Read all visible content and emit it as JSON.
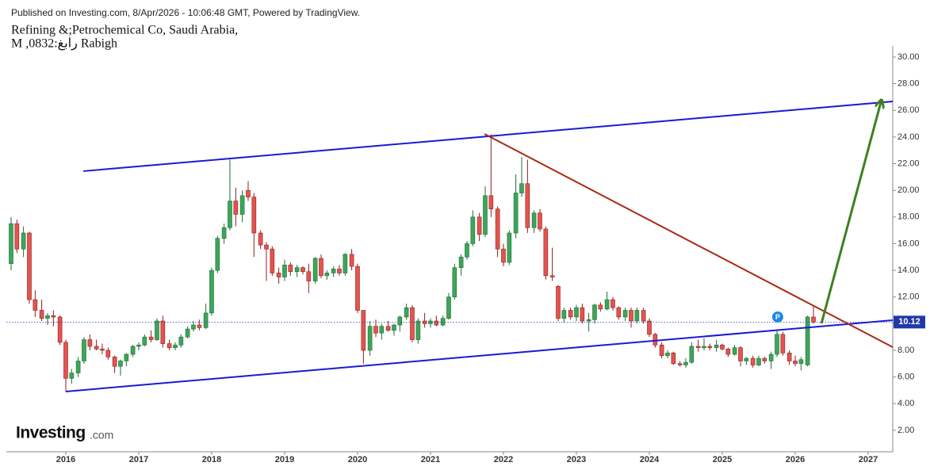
{
  "chart_data": {
    "type": "candlestick",
    "published": "Published on Investing.com, 8/Apr/2026 - 10:06:48 GMT, Powered by TradingView.",
    "title": "Refining &;Petrochemical Co, Saudi Arabia,",
    "subtitle": "M ,0832:رابغ Rabigh",
    "logo": {
      "name": "Investing",
      "suffix": ".com"
    },
    "up_color": "#3ca65a",
    "down_color": "#e5544f",
    "x": [
      2015.25,
      2015.33,
      2015.42,
      2015.5,
      2015.58,
      2015.67,
      2015.75,
      2015.83,
      2015.92,
      2016,
      2016.08,
      2016.17,
      2016.25,
      2016.33,
      2016.42,
      2016.5,
      2016.58,
      2016.67,
      2016.75,
      2016.83,
      2016.92,
      2017,
      2017.08,
      2017.17,
      2017.25,
      2017.33,
      2017.42,
      2017.5,
      2017.58,
      2017.67,
      2017.75,
      2017.83,
      2017.92,
      2018,
      2018.08,
      2018.17,
      2018.25,
      2018.33,
      2018.42,
      2018.5,
      2018.58,
      2018.67,
      2018.75,
      2018.83,
      2018.92,
      2019,
      2019.08,
      2019.17,
      2019.25,
      2019.33,
      2019.42,
      2019.5,
      2019.58,
      2019.67,
      2019.75,
      2019.83,
      2019.92,
      2020,
      2020.08,
      2020.17,
      2020.25,
      2020.33,
      2020.42,
      2020.5,
      2020.58,
      2020.67,
      2020.75,
      2020.83,
      2020.92,
      2021,
      2021.08,
      2021.17,
      2021.25,
      2021.33,
      2021.42,
      2021.5,
      2021.58,
      2021.67,
      2021.75,
      2021.83,
      2021.92,
      2022,
      2022.08,
      2022.17,
      2022.25,
      2022.33,
      2022.42,
      2022.5,
      2022.58,
      2022.67,
      2022.75,
      2022.83,
      2022.92,
      2023,
      2023.08,
      2023.17,
      2023.25,
      2023.33,
      2023.42,
      2023.5,
      2023.58,
      2023.67,
      2023.75,
      2023.83,
      2023.92,
      2024,
      2024.08,
      2024.17,
      2024.25,
      2024.33,
      2024.42,
      2024.5,
      2024.58,
      2024.67,
      2024.75,
      2024.83,
      2024.92,
      2025,
      2025.08,
      2025.17,
      2025.25,
      2025.33,
      2025.42,
      2025.5,
      2025.58,
      2025.67,
      2025.75,
      2025.83,
      2025.92,
      2026,
      2026.08,
      2026.17,
      2026.25
    ],
    "open": [
      14.5,
      17.5,
      15.6,
      16.8,
      11.8,
      11.0,
      10.4,
      10.6,
      10.5,
      8.6,
      5.9,
      6.3,
      7.2,
      8.8,
      8.3,
      8.1,
      8.0,
      7.5,
      6.8,
      7.2,
      7.7,
      8.3,
      8.4,
      9.0,
      8.8,
      10.2,
      8.5,
      8.2,
      8.4,
      9.0,
      9.6,
      9.9,
      9.7,
      10.8,
      14.0,
      16.4,
      17.2,
      19.2,
      18.2,
      20.0,
      19.5,
      16.8,
      15.9,
      15.6,
      13.8,
      13.5,
      14.4,
      13.9,
      14.2,
      13.9,
      13.2,
      14.9,
      13.6,
      13.8,
      14.1,
      13.8,
      15.2,
      14.3,
      11.0,
      8.0,
      9.8,
      9.3,
      9.8,
      9.5,
      9.9,
      10.5,
      11.2,
      8.8,
      10.2,
      10.0,
      10.2,
      9.9,
      10.4,
      12.0,
      14.2,
      15.0,
      16.0,
      18.0,
      16.7,
      19.6,
      18.6,
      15.6,
      14.6,
      16.8,
      19.8,
      20.5,
      17.2,
      18.3,
      17.1,
      13.6,
      12.8,
      10.4,
      11.0,
      10.5,
      11.2,
      10.2,
      10.3,
      11.4,
      11.1,
      11.8,
      11.2,
      10.5,
      11.0,
      10.2,
      11.0,
      10.2,
      9.2,
      8.4,
      7.6,
      7.8,
      7.0,
      6.9,
      7.1,
      8.3,
      8.2,
      8.3,
      8.2,
      8.4,
      8.1,
      7.7,
      8.2,
      7.2,
      7.4,
      6.9,
      7.4,
      7.2,
      7.7,
      9.2,
      7.8,
      7.2,
      7.0,
      6.9,
      10.5
    ],
    "high": [
      18.0,
      17.8,
      17.3,
      16.9,
      12.5,
      11.8,
      10.8,
      11.0,
      10.6,
      8.8,
      6.6,
      7.5,
      9.0,
      9.2,
      8.8,
      8.5,
      8.2,
      7.6,
      7.3,
      7.8,
      8.4,
      8.6,
      9.2,
      9.5,
      10.4,
      10.6,
      8.8,
      8.6,
      9.2,
      9.8,
      10.2,
      10.3,
      11.5,
      14.2,
      16.6,
      17.5,
      22.3,
      20.2,
      20.0,
      20.7,
      19.8,
      17.0,
      16.1,
      15.8,
      14.2,
      14.8,
      14.6,
      14.4,
      14.3,
      14.5,
      15.0,
      15.2,
      14.0,
      14.3,
      14.4,
      15.3,
      15.6,
      14.5,
      11.0,
      10.2,
      10.3,
      10.0,
      10.2,
      10.0,
      10.6,
      11.5,
      11.4,
      10.4,
      10.8,
      10.4,
      10.6,
      10.6,
      12.3,
      14.5,
      15.2,
      16.2,
      18.5,
      18.3,
      20.3,
      24.2,
      18.8,
      16.0,
      17.0,
      21.2,
      22.5,
      22.3,
      18.5,
      18.6,
      17.3,
      15.7,
      12.9,
      11.2,
      11.2,
      11.4,
      11.5,
      10.8,
      11.5,
      11.6,
      12.4,
      12.0,
      11.3,
      11.2,
      11.2,
      11.2,
      11.2,
      10.4,
      9.3,
      8.6,
      8.0,
      7.9,
      7.2,
      7.4,
      8.6,
      8.8,
      8.9,
      8.5,
      8.8,
      8.5,
      8.2,
      8.4,
      8.3,
      7.5,
      7.6,
      7.6,
      7.5,
      7.9,
      9.5,
      9.4,
      8.0,
      7.6,
      7.5,
      10.6,
      11.3
    ],
    "low": [
      14.0,
      15.3,
      15.0,
      11.5,
      10.5,
      10.2,
      9.9,
      9.8,
      8.4,
      4.9,
      5.5,
      6.0,
      7.0,
      8.0,
      8.0,
      7.7,
      7.3,
      6.3,
      6.1,
      6.8,
      7.5,
      8.0,
      8.3,
      8.6,
      8.7,
      8.2,
      8.0,
      8.0,
      8.2,
      8.9,
      9.4,
      9.5,
      9.6,
      10.6,
      13.8,
      16.0,
      17.0,
      17.3,
      17.6,
      19.2,
      15.0,
      15.6,
      13.2,
      13.6,
      13.0,
      13.2,
      13.6,
      13.5,
      13.7,
      12.3,
      13.0,
      13.4,
      13.3,
      13.5,
      13.6,
      13.6,
      14.0,
      10.8,
      7.0,
      7.6,
      9.0,
      8.8,
      9.4,
      9.1,
      9.4,
      10.3,
      8.6,
      8.5,
      9.7,
      9.7,
      9.8,
      9.8,
      10.3,
      11.8,
      13.6,
      14.8,
      15.8,
      16.2,
      16.5,
      18.0,
      15.0,
      14.3,
      14.4,
      16.4,
      19.5,
      16.8,
      16.8,
      16.9,
      13.3,
      13.2,
      10.2,
      10.1,
      10.3,
      10.2,
      10.0,
      9.4,
      10.0,
      10.9,
      11.0,
      11.0,
      10.3,
      10.2,
      9.7,
      10.0,
      10.0,
      9.0,
      8.2,
      7.4,
      7.4,
      6.9,
      6.8,
      6.7,
      7.0,
      7.9,
      8.0,
      8.0,
      7.9,
      8.0,
      7.5,
      7.6,
      6.8,
      6.9,
      6.7,
      6.8,
      7.0,
      6.6,
      7.5,
      7.6,
      6.9,
      6.8,
      6.5,
      6.8,
      10.0
    ],
    "close": [
      17.5,
      15.6,
      16.8,
      11.8,
      11.0,
      10.4,
      10.6,
      10.5,
      8.6,
      5.9,
      6.3,
      7.2,
      8.8,
      8.3,
      8.1,
      8.0,
      7.5,
      6.8,
      7.2,
      7.7,
      8.3,
      8.4,
      9.0,
      8.8,
      10.2,
      8.5,
      8.2,
      8.4,
      9.0,
      9.6,
      9.9,
      9.7,
      10.8,
      14.0,
      16.4,
      17.2,
      19.2,
      18.2,
      19.6,
      19.5,
      16.8,
      15.9,
      15.6,
      13.8,
      13.5,
      14.4,
      13.9,
      14.2,
      13.9,
      13.2,
      14.9,
      13.6,
      13.8,
      14.1,
      13.8,
      15.2,
      14.3,
      11.0,
      8.0,
      9.8,
      9.3,
      9.8,
      9.5,
      9.9,
      10.5,
      11.2,
      8.8,
      10.2,
      10.0,
      10.2,
      9.9,
      10.4,
      12.0,
      14.2,
      15.0,
      16.0,
      18.0,
      16.7,
      19.6,
      18.6,
      15.6,
      14.6,
      16.8,
      19.8,
      20.5,
      17.2,
      18.3,
      17.1,
      13.6,
      13.5,
      10.4,
      11.0,
      10.5,
      11.2,
      10.2,
      10.3,
      11.4,
      11.1,
      11.8,
      11.2,
      10.5,
      11.0,
      10.2,
      11.0,
      10.2,
      9.2,
      8.4,
      7.6,
      7.8,
      7.0,
      6.9,
      7.1,
      8.3,
      8.2,
      8.3,
      8.2,
      8.4,
      8.1,
      7.7,
      8.2,
      7.2,
      7.4,
      6.9,
      7.4,
      7.2,
      7.7,
      9.2,
      7.8,
      7.2,
      7.0,
      7.3,
      10.5,
      10.12
    ],
    "xlim": [
      2015.185,
      2027.337
    ],
    "xticks": [
      2016,
      2017,
      2018,
      2019,
      2020,
      2021,
      2022,
      2023,
      2024,
      2025,
      2026,
      2027
    ],
    "ylim": [
      0.39,
      30.83
    ],
    "yticks": [
      {
        "value": 2,
        "label": "2.00"
      },
      {
        "value": 4,
        "label": "4.00"
      },
      {
        "value": 6,
        "label": "6.00"
      },
      {
        "value": 8,
        "label": "8.00"
      },
      {
        "value": 10,
        "label": "10.00"
      },
      {
        "value": 12,
        "label": "12.00"
      },
      {
        "value": 14,
        "label": "14.00"
      },
      {
        "value": 16,
        "label": "16.00"
      },
      {
        "value": 18,
        "label": "18.00"
      },
      {
        "value": 20,
        "label": "20.00"
      },
      {
        "value": 22,
        "label": "22.00"
      },
      {
        "value": 24,
        "label": "24.00"
      },
      {
        "value": 26,
        "label": "26.00"
      },
      {
        "value": 28,
        "label": "28.00"
      },
      {
        "value": 30,
        "label": "30.00"
      }
    ],
    "grid": false,
    "price_line_color": "#2338a8",
    "trend_lines": [
      {
        "color": "#1a1ad6",
        "x": [
          2016.24,
          2027.337
        ],
        "y": [
          21.44,
          26.67
        ]
      },
      {
        "color": "#1a1ad6",
        "x": [
          2016.0,
          2027.337
        ],
        "y": [
          4.91,
          10.26
        ]
      },
      {
        "color": "#a82a12",
        "x": [
          2021.74,
          2027.337
        ],
        "y": [
          24.23,
          8.24
        ]
      },
      {
        "color": "#3f7f22",
        "x": [
          2026.36,
          2027.18
        ],
        "y": [
          10.02,
          26.73
        ],
        "arrow": true
      }
    ],
    "markers": [
      {
        "x": 2025.76,
        "y": 10.5,
        "label": "P",
        "color": "#1e88e5"
      }
    ]
  }
}
